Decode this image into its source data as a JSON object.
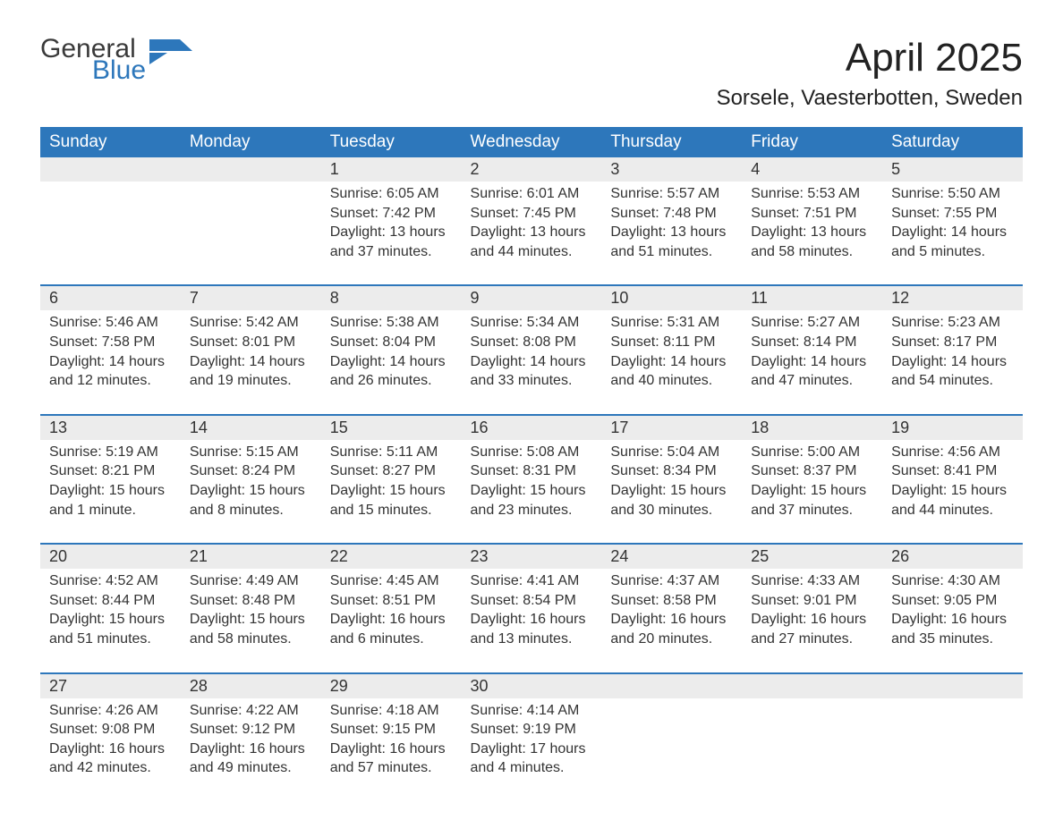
{
  "logo": {
    "word1": "General",
    "word2": "Blue",
    "color_general": "#3a3a3a",
    "color_blue": "#2d77bb",
    "shape_color": "#2d77bb"
  },
  "header": {
    "title": "April 2025",
    "location": "Sorsele, Vaesterbotten, Sweden"
  },
  "weekday_labels": [
    "Sunday",
    "Monday",
    "Tuesday",
    "Wednesday",
    "Thursday",
    "Friday",
    "Saturday"
  ],
  "colors": {
    "header_bg": "#2d77bb",
    "daynum_bg": "#ececec",
    "week_border": "#2d77bb",
    "text": "#333333",
    "page_bg": "#ffffff"
  },
  "fonts": {
    "title_pt": 44,
    "location_pt": 24,
    "weekday_pt": 19,
    "daynum_pt": 18,
    "body_pt": 16
  },
  "weeks": [
    [
      {
        "n": "",
        "sr": "",
        "ss": "",
        "d1": "",
        "d2": ""
      },
      {
        "n": "",
        "sr": "",
        "ss": "",
        "d1": "",
        "d2": ""
      },
      {
        "n": "1",
        "sr": "Sunrise: 6:05 AM",
        "ss": "Sunset: 7:42 PM",
        "d1": "Daylight: 13 hours",
        "d2": "and 37 minutes."
      },
      {
        "n": "2",
        "sr": "Sunrise: 6:01 AM",
        "ss": "Sunset: 7:45 PM",
        "d1": "Daylight: 13 hours",
        "d2": "and 44 minutes."
      },
      {
        "n": "3",
        "sr": "Sunrise: 5:57 AM",
        "ss": "Sunset: 7:48 PM",
        "d1": "Daylight: 13 hours",
        "d2": "and 51 minutes."
      },
      {
        "n": "4",
        "sr": "Sunrise: 5:53 AM",
        "ss": "Sunset: 7:51 PM",
        "d1": "Daylight: 13 hours",
        "d2": "and 58 minutes."
      },
      {
        "n": "5",
        "sr": "Sunrise: 5:50 AM",
        "ss": "Sunset: 7:55 PM",
        "d1": "Daylight: 14 hours",
        "d2": "and 5 minutes."
      }
    ],
    [
      {
        "n": "6",
        "sr": "Sunrise: 5:46 AM",
        "ss": "Sunset: 7:58 PM",
        "d1": "Daylight: 14 hours",
        "d2": "and 12 minutes."
      },
      {
        "n": "7",
        "sr": "Sunrise: 5:42 AM",
        "ss": "Sunset: 8:01 PM",
        "d1": "Daylight: 14 hours",
        "d2": "and 19 minutes."
      },
      {
        "n": "8",
        "sr": "Sunrise: 5:38 AM",
        "ss": "Sunset: 8:04 PM",
        "d1": "Daylight: 14 hours",
        "d2": "and 26 minutes."
      },
      {
        "n": "9",
        "sr": "Sunrise: 5:34 AM",
        "ss": "Sunset: 8:08 PM",
        "d1": "Daylight: 14 hours",
        "d2": "and 33 minutes."
      },
      {
        "n": "10",
        "sr": "Sunrise: 5:31 AM",
        "ss": "Sunset: 8:11 PM",
        "d1": "Daylight: 14 hours",
        "d2": "and 40 minutes."
      },
      {
        "n": "11",
        "sr": "Sunrise: 5:27 AM",
        "ss": "Sunset: 8:14 PM",
        "d1": "Daylight: 14 hours",
        "d2": "and 47 minutes."
      },
      {
        "n": "12",
        "sr": "Sunrise: 5:23 AM",
        "ss": "Sunset: 8:17 PM",
        "d1": "Daylight: 14 hours",
        "d2": "and 54 minutes."
      }
    ],
    [
      {
        "n": "13",
        "sr": "Sunrise: 5:19 AM",
        "ss": "Sunset: 8:21 PM",
        "d1": "Daylight: 15 hours",
        "d2": "and 1 minute."
      },
      {
        "n": "14",
        "sr": "Sunrise: 5:15 AM",
        "ss": "Sunset: 8:24 PM",
        "d1": "Daylight: 15 hours",
        "d2": "and 8 minutes."
      },
      {
        "n": "15",
        "sr": "Sunrise: 5:11 AM",
        "ss": "Sunset: 8:27 PM",
        "d1": "Daylight: 15 hours",
        "d2": "and 15 minutes."
      },
      {
        "n": "16",
        "sr": "Sunrise: 5:08 AM",
        "ss": "Sunset: 8:31 PM",
        "d1": "Daylight: 15 hours",
        "d2": "and 23 minutes."
      },
      {
        "n": "17",
        "sr": "Sunrise: 5:04 AM",
        "ss": "Sunset: 8:34 PM",
        "d1": "Daylight: 15 hours",
        "d2": "and 30 minutes."
      },
      {
        "n": "18",
        "sr": "Sunrise: 5:00 AM",
        "ss": "Sunset: 8:37 PM",
        "d1": "Daylight: 15 hours",
        "d2": "and 37 minutes."
      },
      {
        "n": "19",
        "sr": "Sunrise: 4:56 AM",
        "ss": "Sunset: 8:41 PM",
        "d1": "Daylight: 15 hours",
        "d2": "and 44 minutes."
      }
    ],
    [
      {
        "n": "20",
        "sr": "Sunrise: 4:52 AM",
        "ss": "Sunset: 8:44 PM",
        "d1": "Daylight: 15 hours",
        "d2": "and 51 minutes."
      },
      {
        "n": "21",
        "sr": "Sunrise: 4:49 AM",
        "ss": "Sunset: 8:48 PM",
        "d1": "Daylight: 15 hours",
        "d2": "and 58 minutes."
      },
      {
        "n": "22",
        "sr": "Sunrise: 4:45 AM",
        "ss": "Sunset: 8:51 PM",
        "d1": "Daylight: 16 hours",
        "d2": "and 6 minutes."
      },
      {
        "n": "23",
        "sr": "Sunrise: 4:41 AM",
        "ss": "Sunset: 8:54 PM",
        "d1": "Daylight: 16 hours",
        "d2": "and 13 minutes."
      },
      {
        "n": "24",
        "sr": "Sunrise: 4:37 AM",
        "ss": "Sunset: 8:58 PM",
        "d1": "Daylight: 16 hours",
        "d2": "and 20 minutes."
      },
      {
        "n": "25",
        "sr": "Sunrise: 4:33 AM",
        "ss": "Sunset: 9:01 PM",
        "d1": "Daylight: 16 hours",
        "d2": "and 27 minutes."
      },
      {
        "n": "26",
        "sr": "Sunrise: 4:30 AM",
        "ss": "Sunset: 9:05 PM",
        "d1": "Daylight: 16 hours",
        "d2": "and 35 minutes."
      }
    ],
    [
      {
        "n": "27",
        "sr": "Sunrise: 4:26 AM",
        "ss": "Sunset: 9:08 PM",
        "d1": "Daylight: 16 hours",
        "d2": "and 42 minutes."
      },
      {
        "n": "28",
        "sr": "Sunrise: 4:22 AM",
        "ss": "Sunset: 9:12 PM",
        "d1": "Daylight: 16 hours",
        "d2": "and 49 minutes."
      },
      {
        "n": "29",
        "sr": "Sunrise: 4:18 AM",
        "ss": "Sunset: 9:15 PM",
        "d1": "Daylight: 16 hours",
        "d2": "and 57 minutes."
      },
      {
        "n": "30",
        "sr": "Sunrise: 4:14 AM",
        "ss": "Sunset: 9:19 PM",
        "d1": "Daylight: 17 hours",
        "d2": "and 4 minutes."
      },
      {
        "n": "",
        "sr": "",
        "ss": "",
        "d1": "",
        "d2": ""
      },
      {
        "n": "",
        "sr": "",
        "ss": "",
        "d1": "",
        "d2": ""
      },
      {
        "n": "",
        "sr": "",
        "ss": "",
        "d1": "",
        "d2": ""
      }
    ]
  ]
}
